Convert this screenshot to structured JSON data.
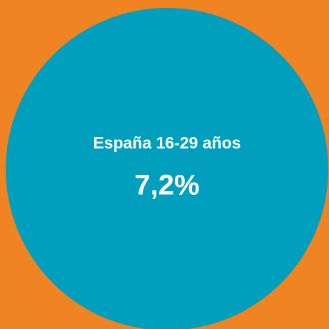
{
  "label": "España 16-29 años",
  "value": "7,2%"
}
